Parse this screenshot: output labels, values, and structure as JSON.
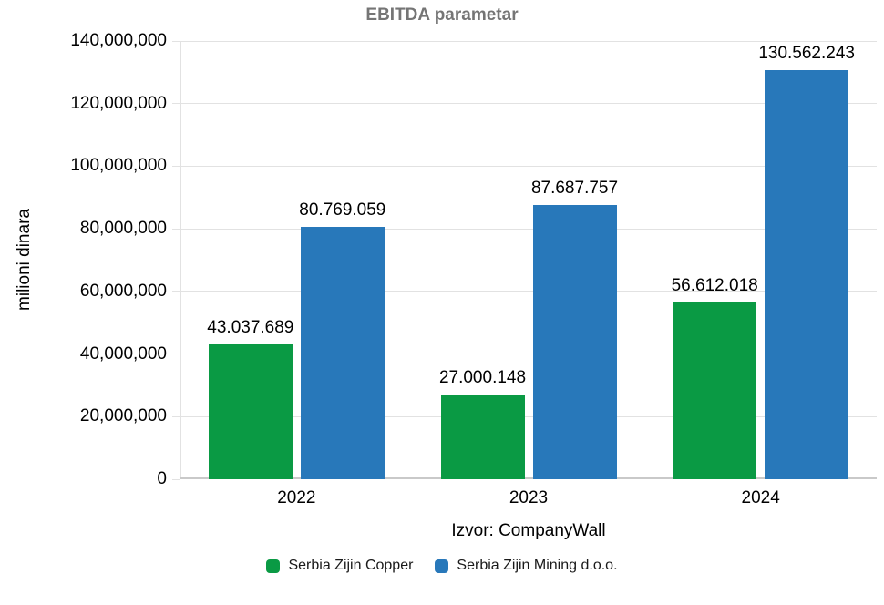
{
  "chart": {
    "title": "EBITDA parametar",
    "ylabel": "milioni dinara",
    "source_label": "Izvor: CompanyWall"
  },
  "colors": {
    "copper_green": "#0a9a44",
    "mining_blue": "#2878ba",
    "title_gray": "#757575",
    "gridline": "#e2e2e2",
    "baseline": "#c9c9c9",
    "text": "#000000"
  },
  "chart_data": {
    "type": "bar",
    "title": "EBITDA parametar",
    "xlabel": "Izvor: CompanyWall",
    "ylabel": "milioni dinara",
    "categories": [
      "2022",
      "2023",
      "2024"
    ],
    "series": [
      {
        "name": "Serbia Zijin Copper",
        "color": "#0a9a44",
        "values": [
          43037689,
          27000148,
          56612018
        ],
        "labels": [
          "43.037.689",
          "27.000.148",
          "56.612.018"
        ]
      },
      {
        "name": "Serbia Zijin Mining d.o.o.",
        "color": "#2878ba",
        "values": [
          80769059,
          87687757,
          130562243
        ],
        "labels": [
          "80.769.059",
          "87.687.757",
          "130.562.243"
        ]
      }
    ],
    "ylim": [
      0,
      140000000
    ],
    "y_ticks": [
      "0",
      "20,000,000",
      "40,000,000",
      "60,000,000",
      "80,000,000",
      "100,000,000",
      "120,000,000",
      "140,000,000"
    ],
    "grid": "horizontal-only",
    "legend_position": "bottom-center",
    "value_labels_shown": true
  }
}
